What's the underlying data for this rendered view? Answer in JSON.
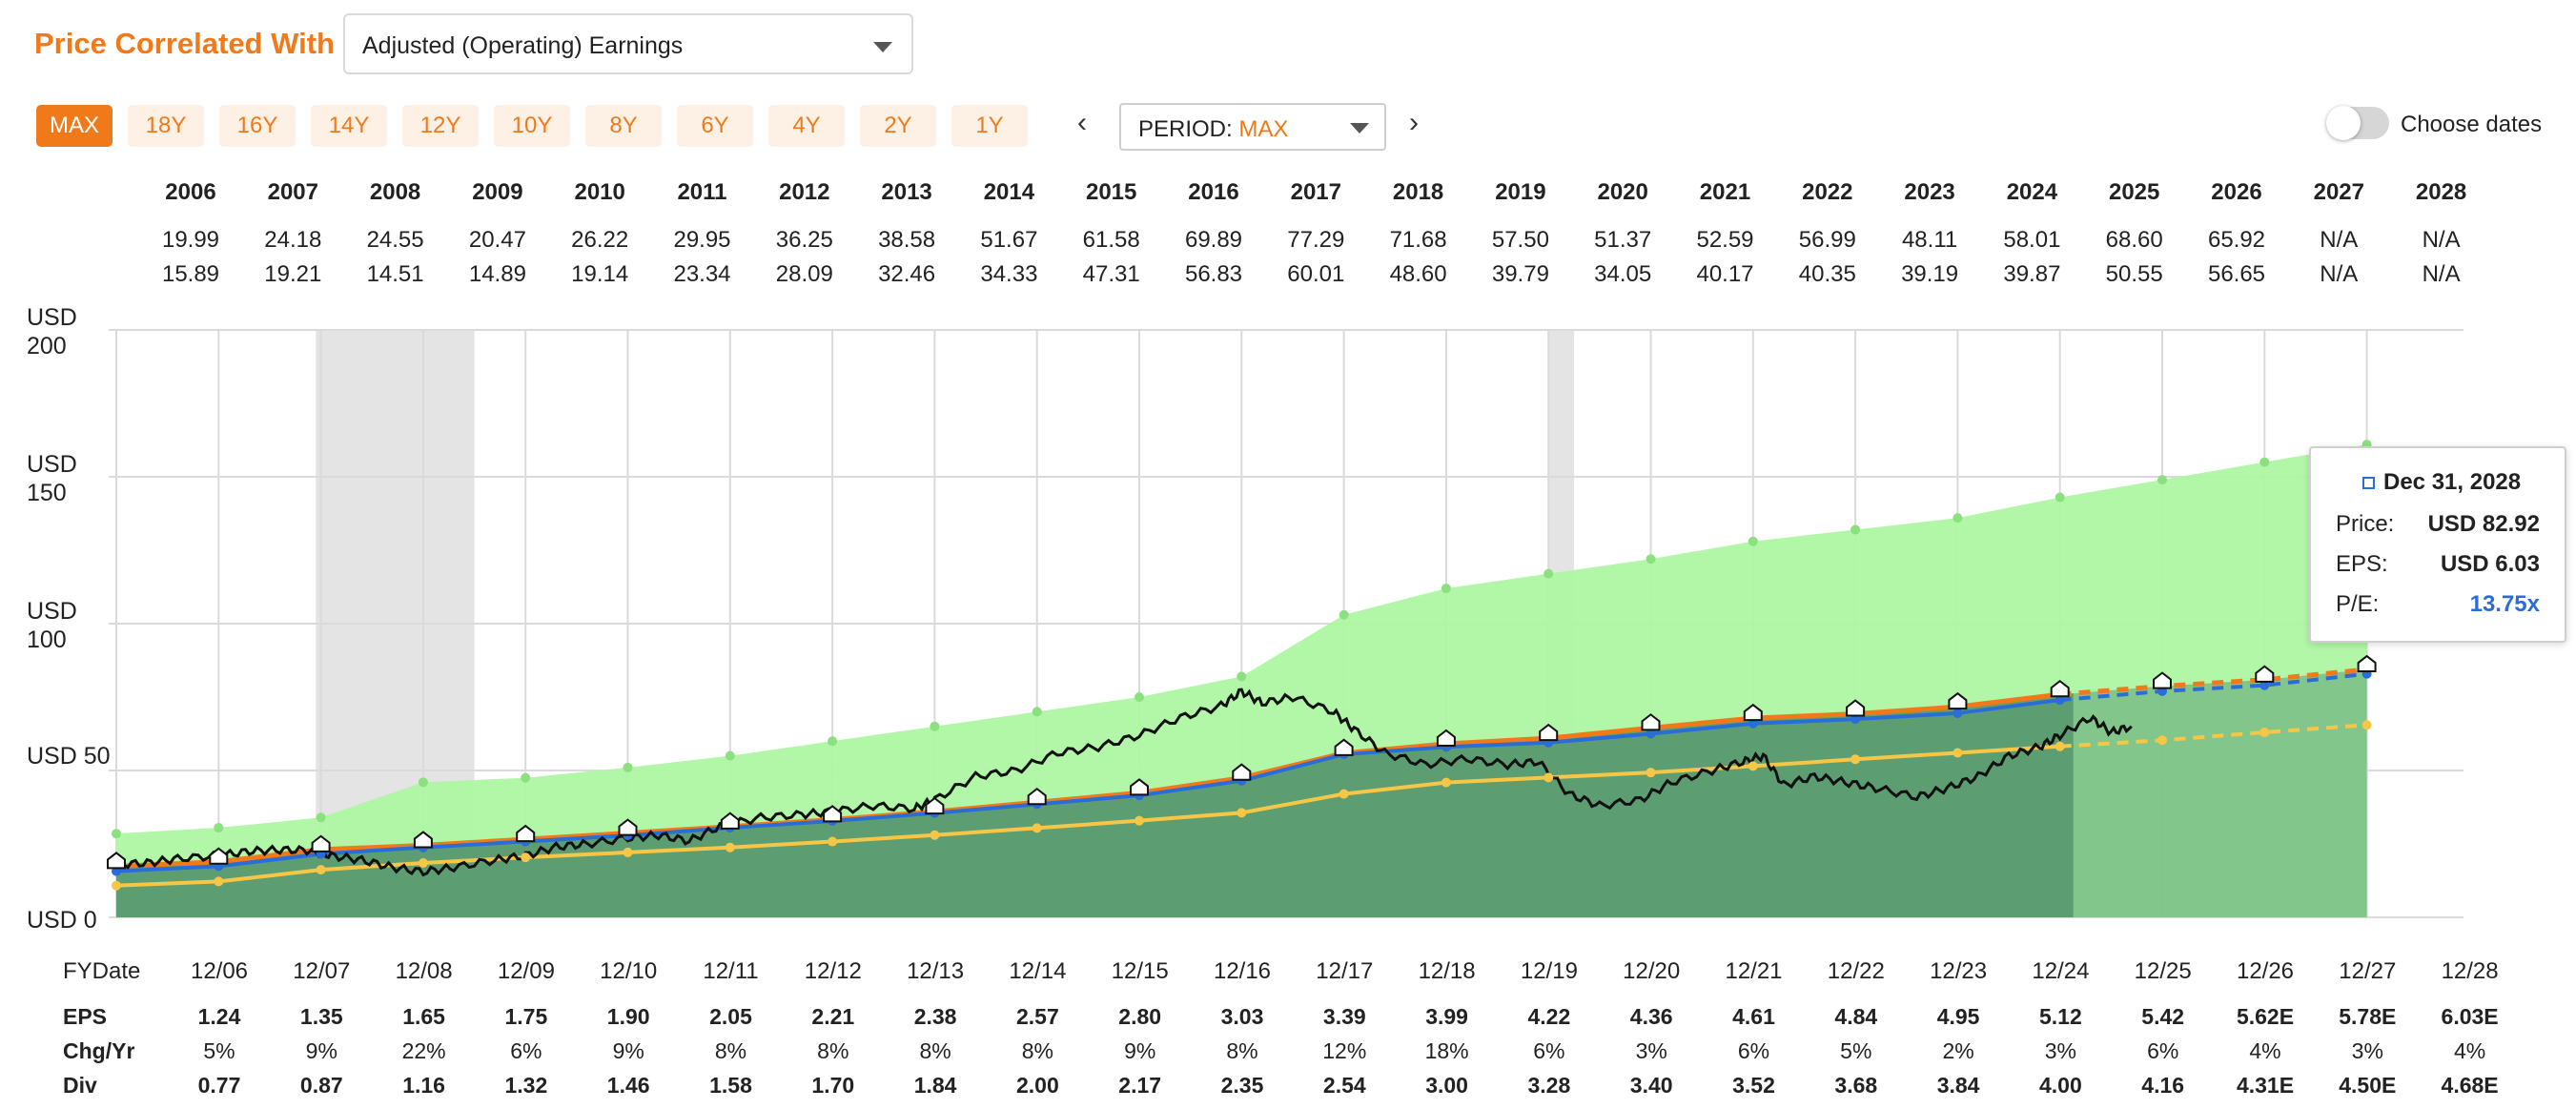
{
  "header": {
    "title": "Price Correlated With",
    "metric_value": "Adjusted (Operating) Earnings",
    "period_buttons": [
      "MAX",
      "18Y",
      "16Y",
      "14Y",
      "12Y",
      "10Y",
      "8Y",
      "6Y",
      "4Y",
      "2Y",
      "1Y"
    ],
    "active_period": "MAX",
    "period_label": "PERIOD:",
    "period_value": "MAX",
    "choose_dates": "Choose dates"
  },
  "colors": {
    "accent": "#f07a1a",
    "fair_value_area": "#aef5a3",
    "normal_pe_area": "#5c9e72",
    "price_line": "#111111",
    "eps_line": "#f07a1a",
    "normal_pe_line": "#2a6dd8",
    "dividend_line": "#f7c646",
    "recession": "#e4e4e4"
  },
  "tooltip": {
    "date": "Dec 31, 2028",
    "price_label": "Price:",
    "price": "USD 82.92",
    "eps_label": "EPS:",
    "eps": "USD 6.03",
    "pe_label": "P/E:",
    "pe": "13.75x"
  },
  "chart_data": {
    "type": "area",
    "y_axis": {
      "ticks": [
        "USD 0",
        "USD 50",
        "USD 100",
        "USD 150",
        "USD 200"
      ],
      "range": [
        0,
        200
      ]
    },
    "years": [
      "2006",
      "2007",
      "2008",
      "2009",
      "2010",
      "2011",
      "2012",
      "2013",
      "2014",
      "2015",
      "2016",
      "2017",
      "2018",
      "2019",
      "2020",
      "2021",
      "2022",
      "2023",
      "2024",
      "2025",
      "2026",
      "2027",
      "2028"
    ],
    "year_high": [
      "19.99",
      "24.18",
      "24.55",
      "20.47",
      "26.22",
      "29.95",
      "36.25",
      "38.58",
      "51.67",
      "61.58",
      "69.89",
      "77.29",
      "71.68",
      "57.50",
      "51.37",
      "52.59",
      "56.99",
      "48.11",
      "58.01",
      "68.60",
      "65.92",
      "N/A",
      "N/A"
    ],
    "year_low": [
      "15.89",
      "19.21",
      "14.51",
      "14.89",
      "19.14",
      "23.34",
      "28.09",
      "32.46",
      "34.33",
      "47.31",
      "56.83",
      "60.01",
      "48.60",
      "39.79",
      "34.05",
      "40.17",
      "40.35",
      "39.19",
      "39.87",
      "50.55",
      "56.65",
      "N/A",
      "N/A"
    ],
    "fy_label": "FYDate",
    "fy_dates": [
      "12/06",
      "12/07",
      "12/08",
      "12/09",
      "12/10",
      "12/11",
      "12/12",
      "12/13",
      "12/14",
      "12/15",
      "12/16",
      "12/17",
      "12/18",
      "12/19",
      "12/20",
      "12/21",
      "12/22",
      "12/23",
      "12/24",
      "12/25",
      "12/26",
      "12/27",
      "12/28"
    ],
    "rows": {
      "eps_label": "EPS",
      "eps": [
        "1.24",
        "1.35",
        "1.65",
        "1.75",
        "1.90",
        "2.05",
        "2.21",
        "2.38",
        "2.57",
        "2.80",
        "3.03",
        "3.39",
        "3.99",
        "4.22",
        "4.36",
        "4.61",
        "4.84",
        "4.95",
        "5.12",
        "5.42",
        "5.62E",
        "5.78E",
        "6.03E"
      ],
      "chg_label": "Chg/Yr",
      "chg": [
        "5%",
        "9%",
        "22%",
        "6%",
        "9%",
        "8%",
        "8%",
        "8%",
        "8%",
        "9%",
        "8%",
        "12%",
        "18%",
        "6%",
        "3%",
        "6%",
        "5%",
        "2%",
        "3%",
        "6%",
        "4%",
        "3%",
        "4%"
      ],
      "div_label": "Div",
      "div": [
        "0.77",
        "0.87",
        "1.16",
        "1.32",
        "1.46",
        "1.58",
        "1.70",
        "1.84",
        "2.00",
        "2.17",
        "2.35",
        "2.54",
        "3.00",
        "3.28",
        "3.40",
        "3.52",
        "3.68",
        "3.84",
        "4.00",
        "4.16",
        "4.31E",
        "4.50E",
        "4.68E"
      ]
    },
    "x_dates": [
      2006.0,
      2007.0,
      2008.0,
      2009.0,
      2010.0,
      2011.0,
      2012.0,
      2013.0,
      2014.0,
      2015.0,
      2016.0,
      2017.0,
      2018.0,
      2019.0,
      2020.0,
      2021.0,
      2022.0,
      2023.0,
      2024.0,
      2025.0,
      2026.0,
      2027.0,
      2028.0
    ],
    "x_range": [
      2006.0,
      2029.0
    ],
    "forecast_from": 2025.0,
    "fair_value_upper": [
      28.5,
      30.5,
      34,
      46,
      47.5,
      51,
      55,
      60,
      65,
      70,
      75,
      82,
      103,
      112,
      117,
      122,
      128,
      132,
      136,
      143,
      149,
      155,
      161
    ],
    "eps_line": [
      17.4,
      18.9,
      23.1,
      24.5,
      26.6,
      28.7,
      30.9,
      33.3,
      36,
      39.2,
      42.4,
      47.5,
      55.9,
      59.1,
      61,
      64.5,
      67.8,
      69.3,
      71.7,
      75.9,
      78.7,
      80.9,
      84.4
    ],
    "normal_pe_line": [
      15.7,
      17.4,
      21.6,
      23.8,
      25.8,
      27.9,
      30.5,
      32.8,
      35.5,
      38.5,
      41.5,
      46.5,
      55.5,
      58,
      59.5,
      62.5,
      66,
      67.5,
      69.5,
      74,
      77,
      79,
      82.9
    ],
    "dividend_line": [
      10.8,
      12.2,
      16.2,
      18.5,
      20.4,
      22.1,
      23.8,
      25.8,
      28,
      30.4,
      32.9,
      35.6,
      42,
      45.9,
      47.6,
      49.3,
      51.5,
      53.8,
      56,
      58.2,
      60.3,
      63,
      65.5
    ],
    "price_series": [
      [
        2006.0,
        18
      ],
      [
        2006.3,
        18.5
      ],
      [
        2006.6,
        20
      ],
      [
        2007.0,
        21
      ],
      [
        2007.3,
        22.5
      ],
      [
        2007.6,
        23
      ],
      [
        2007.9,
        22.8
      ],
      [
        2008.1,
        21
      ],
      [
        2008.4,
        19.5
      ],
      [
        2008.7,
        17
      ],
      [
        2009.0,
        15.5
      ],
      [
        2009.3,
        17
      ],
      [
        2009.7,
        19.5
      ],
      [
        2010.0,
        21
      ],
      [
        2010.3,
        24
      ],
      [
        2010.6,
        25
      ],
      [
        2011.0,
        27
      ],
      [
        2011.3,
        28
      ],
      [
        2011.6,
        26
      ],
      [
        2011.9,
        31
      ],
      [
        2012.3,
        34
      ],
      [
        2012.7,
        35
      ],
      [
        2013.0,
        36
      ],
      [
        2013.4,
        38
      ],
      [
        2013.8,
        37
      ],
      [
        2014.0,
        40
      ],
      [
        2014.4,
        48
      ],
      [
        2014.8,
        50
      ],
      [
        2015.2,
        56
      ],
      [
        2015.6,
        58
      ],
      [
        2016.0,
        62
      ],
      [
        2016.4,
        68
      ],
      [
        2016.8,
        72
      ],
      [
        2017.0,
        77
      ],
      [
        2017.2,
        73
      ],
      [
        2017.5,
        75
      ],
      [
        2017.9,
        70
      ],
      [
        2018.1,
        64
      ],
      [
        2018.4,
        56
      ],
      [
        2018.8,
        52
      ],
      [
        2019.2,
        54
      ],
      [
        2019.6,
        52
      ],
      [
        2019.9,
        53
      ],
      [
        2020.2,
        42
      ],
      [
        2020.5,
        38
      ],
      [
        2020.9,
        40
      ],
      [
        2021.2,
        46
      ],
      [
        2021.6,
        50
      ],
      [
        2021.9,
        53
      ],
      [
        2022.1,
        55
      ],
      [
        2022.3,
        45
      ],
      [
        2022.6,
        48
      ],
      [
        2022.9,
        46
      ],
      [
        2023.2,
        44
      ],
      [
        2023.6,
        41
      ],
      [
        2023.9,
        44
      ],
      [
        2024.2,
        48
      ],
      [
        2024.5,
        55
      ],
      [
        2024.8,
        58
      ],
      [
        2025.0,
        62
      ],
      [
        2025.3,
        68
      ],
      [
        2025.5,
        63
      ],
      [
        2025.7,
        65
      ]
    ],
    "recessions": [
      [
        2007.95,
        2009.5
      ],
      [
        2020.0,
        2020.25
      ]
    ],
    "markers_at": "fy_dates"
  }
}
